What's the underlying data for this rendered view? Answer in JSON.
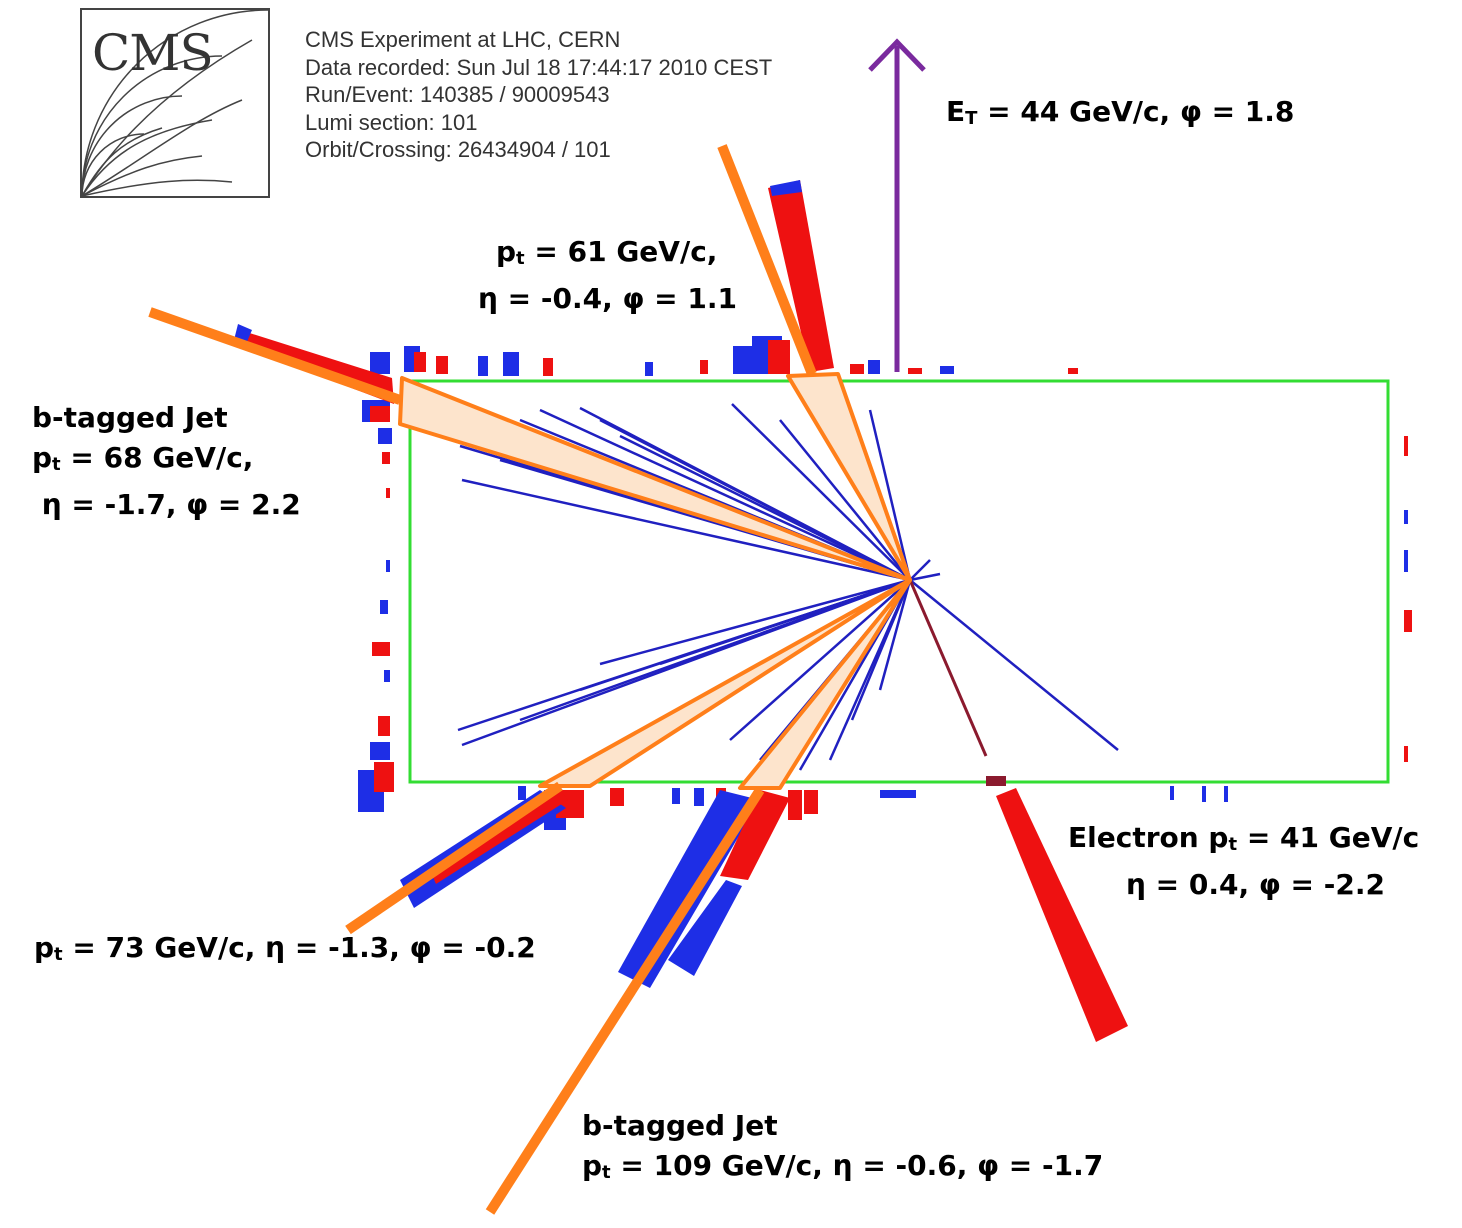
{
  "logo": {
    "text": "CMS"
  },
  "event_info": {
    "lines": [
      "CMS Experiment at LHC, CERN",
      "Data recorded: Sun Jul 18 17:44:17 2010 CEST",
      "Run/Event: 140385 / 90009543",
      "Lumi section: 101",
      "Orbit/Crossing: 26434904 / 101"
    ]
  },
  "labels": {
    "met": {
      "prefix": "E",
      "sub": "T",
      "rest": " = 44 GeV/c, φ = 1.8"
    },
    "jet61": {
      "l1_prefix": "p",
      "l1_sub": "t",
      "l1_rest": " = 61 GeV/c,",
      "l2": "η = -0.4, φ = 1.1"
    },
    "bjet68": {
      "l1": "b-tagged Jet",
      "l2_prefix": "p",
      "l2_sub": "t",
      "l2_rest": " = 68 GeV/c,",
      "l3": " η = -1.7, φ = 2.2"
    },
    "jet73": {
      "prefix": "p",
      "sub": "t",
      "rest": " = 73 GeV/c, η = -1.3, φ = -0.2"
    },
    "electron": {
      "l1_prefix": "Electron p",
      "l1_sub": "t",
      "l1_rest": " = 41 GeV/c",
      "l2": "η = 0.4, φ = -2.2"
    },
    "bjet109": {
      "l1": "b-tagged Jet",
      "l2_prefix": "p",
      "l2_sub": "t",
      "l2_rest": " = 109 GeV/c, η = -0.6, φ = -1.7"
    }
  },
  "colors": {
    "detector_outline": "#33dd33",
    "track": "#2020c0",
    "hcal": "#1e2ee6",
    "ecal": "#ee1111",
    "jet": "#ff7f1a",
    "jet_fill": "#fde4cc",
    "met_arrow": "#7a2a9e",
    "electron_track": "#8b1a2e"
  }
}
